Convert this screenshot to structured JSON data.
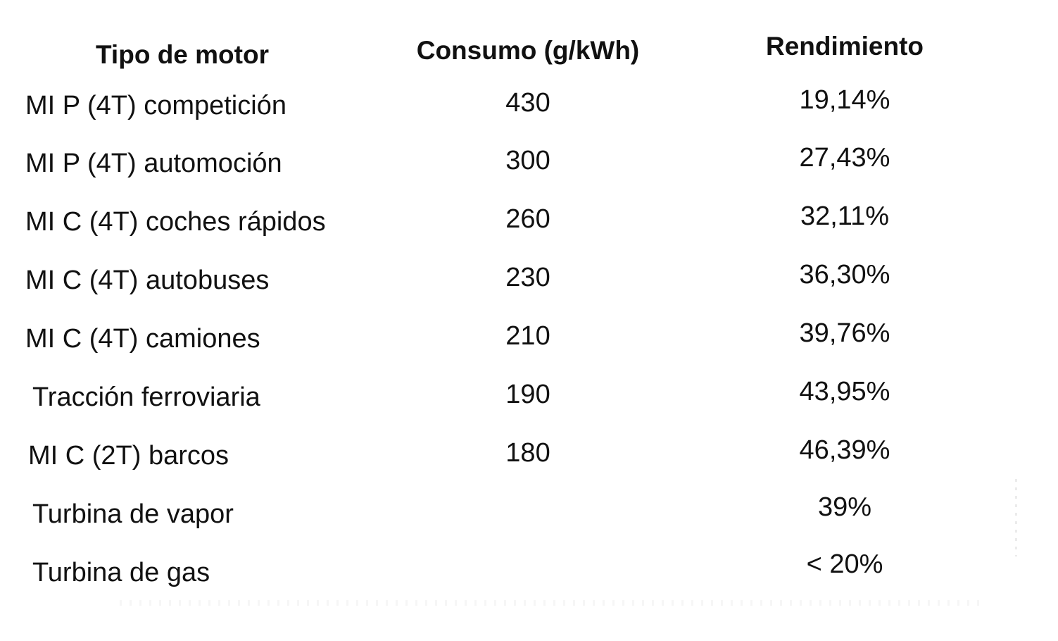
{
  "table": {
    "headers": {
      "type": "Tipo de motor",
      "consumo": "Consumo (g/kWh)",
      "rendimiento": "Rendimiento"
    },
    "rows": [
      {
        "type": "MI P (4T) competición",
        "consumo": "430",
        "rendimiento": "19,14%"
      },
      {
        "type": "MI P (4T) automoción",
        "consumo": "300",
        "rendimiento": "27,43%"
      },
      {
        "type": "MI C (4T) coches rápidos",
        "consumo": "260",
        "rendimiento": "32,11%"
      },
      {
        "type": "MI C (4T) autobuses",
        "consumo": "230",
        "rendimiento": "36,30%"
      },
      {
        "type": "MI C (4T) camiones",
        "consumo": "210",
        "rendimiento": "39,76%"
      },
      {
        "type": "Tracción ferroviaria",
        "consumo": "190",
        "rendimiento": "43,95%"
      },
      {
        "type": "MI C (2T) barcos",
        "consumo": "180",
        "rendimiento": "46,39%"
      },
      {
        "type": "Turbina de vapor",
        "consumo": "",
        "rendimiento": "39%"
      },
      {
        "type": "Turbina de gas",
        "consumo": "",
        "rendimiento": "< 20%"
      }
    ]
  }
}
